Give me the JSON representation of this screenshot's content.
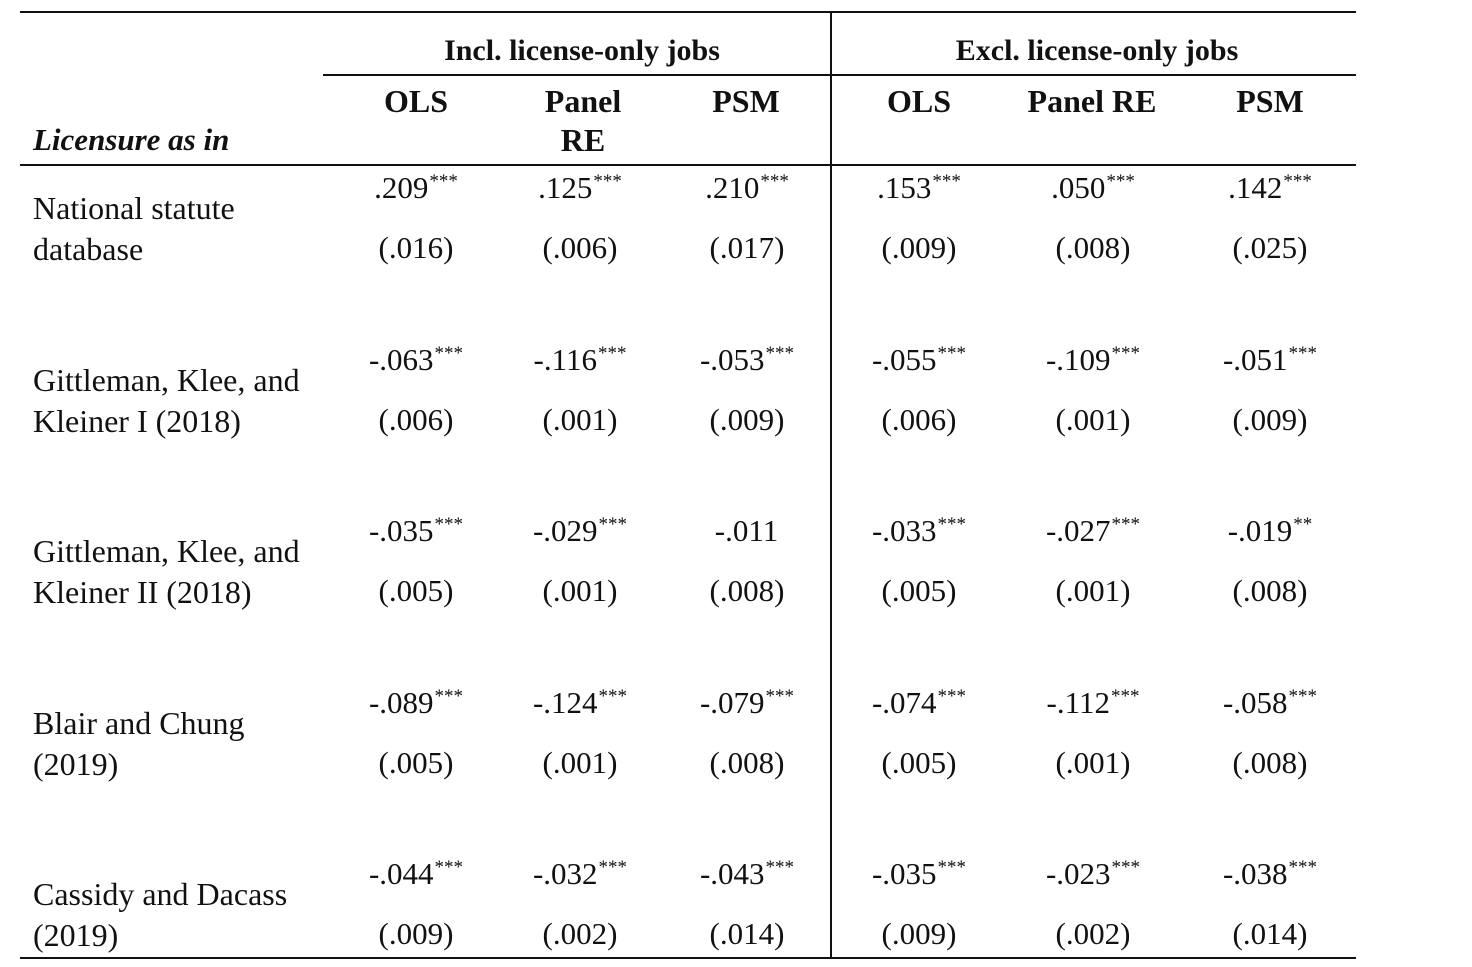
{
  "table": {
    "stub_header": "Licensure as in",
    "groups": [
      {
        "label": "Incl. license-only jobs"
      },
      {
        "label": "Excl. license-only jobs"
      }
    ],
    "columns": [
      {
        "line1": "",
        "line2": "OLS"
      },
      {
        "line1": "Panel",
        "line2": "RE"
      },
      {
        "line1": "",
        "line2": "PSM"
      },
      {
        "line1": "",
        "line2": "OLS"
      },
      {
        "line1": "",
        "line2": "Panel RE"
      },
      {
        "line1": "",
        "line2": "PSM"
      }
    ],
    "rows": [
      {
        "label1": "National statute",
        "label2": "database",
        "coef": [
          ".209",
          ".125",
          ".210",
          ".153",
          ".050",
          ".142"
        ],
        "stars": [
          "***",
          "***",
          "***",
          "***",
          "***",
          "***"
        ],
        "se": [
          "(.016)",
          "(.006)",
          "(.017)",
          "(.009)",
          "(.008)",
          "(.025)"
        ]
      },
      {
        "label1": "Gittleman, Klee, and",
        "label2": "Kleiner I (2018)",
        "coef": [
          "-.063",
          "-.116",
          "-.053",
          "-.055",
          "-.109",
          "-.051"
        ],
        "stars": [
          "***",
          "***",
          "***",
          "***",
          "***",
          "***"
        ],
        "se": [
          "(.006)",
          "(.001)",
          "(.009)",
          "(.006)",
          "(.001)",
          "(.009)"
        ]
      },
      {
        "label1": "Gittleman, Klee, and",
        "label2": "Kleiner II (2018)",
        "coef": [
          "-.035",
          "-.029",
          "-.011",
          "-.033",
          "-.027",
          "-.019"
        ],
        "stars": [
          "***",
          "***",
          "",
          "***",
          "***",
          "**"
        ],
        "se": [
          "(.005)",
          "(.001)",
          "(.008)",
          "(.005)",
          "(.001)",
          "(.008)"
        ]
      },
      {
        "label1": "Blair and Chung",
        "label2": "(2019)",
        "coef": [
          "-.089",
          "-.124",
          "-.079",
          "-.074",
          "-.112",
          "-.058"
        ],
        "stars": [
          "***",
          "***",
          "***",
          "***",
          "***",
          "***"
        ],
        "se": [
          "(.005)",
          "(.001)",
          "(.008)",
          "(.005)",
          "(.001)",
          "(.008)"
        ]
      },
      {
        "label1": "Cassidy and Dacass",
        "label2": "(2019)",
        "coef": [
          "-.044",
          "-.032",
          "-.043",
          "-.035",
          "-.023",
          "-.038"
        ],
        "stars": [
          "***",
          "***",
          "***",
          "***",
          "***",
          "***"
        ],
        "se": [
          "(.009)",
          "(.002)",
          "(.014)",
          "(.009)",
          "(.002)",
          "(.014)"
        ]
      }
    ]
  }
}
